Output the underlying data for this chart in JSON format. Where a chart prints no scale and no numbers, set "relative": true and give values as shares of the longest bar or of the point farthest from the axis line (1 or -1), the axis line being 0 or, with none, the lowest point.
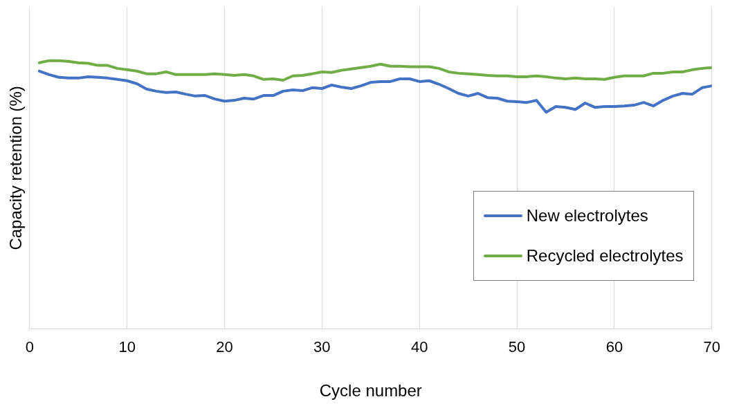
{
  "chart_data": {
    "type": "line",
    "relative": true,
    "xlabel": "Cycle number",
    "ylabel": "Capacity retention (%)",
    "x": [
      1,
      2,
      3,
      4,
      5,
      6,
      7,
      8,
      9,
      10,
      11,
      12,
      13,
      14,
      15,
      16,
      17,
      18,
      19,
      20,
      21,
      22,
      23,
      24,
      25,
      26,
      27,
      28,
      29,
      30,
      31,
      32,
      33,
      34,
      35,
      36,
      37,
      38,
      39,
      40,
      41,
      42,
      43,
      44,
      45,
      46,
      47,
      48,
      49,
      50,
      51,
      52,
      53,
      54,
      55,
      56,
      57,
      58,
      59,
      60,
      61,
      62,
      63,
      64,
      65,
      66,
      67,
      68,
      69,
      70
    ],
    "xlim": [
      0,
      70
    ],
    "xticks": [
      0,
      10,
      20,
      30,
      40,
      50,
      60,
      70
    ],
    "grid": "x",
    "legend": "bottom right",
    "marker": "none",
    "line_style": "solid",
    "series": [
      {
        "name": "New electrolytes",
        "color": "#4472c4",
        "values": [
          0.961,
          0.948,
          0.938,
          0.935,
          0.935,
          0.94,
          0.938,
          0.935,
          0.93,
          0.925,
          0.914,
          0.894,
          0.886,
          0.881,
          0.883,
          0.875,
          0.868,
          0.87,
          0.857,
          0.849,
          0.852,
          0.86,
          0.857,
          0.87,
          0.87,
          0.886,
          0.891,
          0.888,
          0.899,
          0.896,
          0.909,
          0.901,
          0.896,
          0.906,
          0.919,
          0.922,
          0.922,
          0.932,
          0.932,
          0.922,
          0.925,
          0.912,
          0.896,
          0.878,
          0.868,
          0.878,
          0.862,
          0.86,
          0.849,
          0.847,
          0.844,
          0.852,
          0.808,
          0.829,
          0.826,
          0.818,
          0.842,
          0.826,
          0.829,
          0.829,
          0.831,
          0.834,
          0.844,
          0.831,
          0.852,
          0.868,
          0.878,
          0.875,
          0.899,
          0.906
        ]
      },
      {
        "name": "Recycled electrolytes",
        "color": "#70ad47",
        "values": [
          0.992,
          1,
          1,
          0.997,
          0.992,
          0.99,
          0.982,
          0.982,
          0.971,
          0.966,
          0.961,
          0.951,
          0.951,
          0.958,
          0.948,
          0.948,
          0.948,
          0.948,
          0.951,
          0.948,
          0.945,
          0.948,
          0.943,
          0.93,
          0.932,
          0.927,
          0.943,
          0.945,
          0.951,
          0.958,
          0.956,
          0.964,
          0.969,
          0.974,
          0.979,
          0.987,
          0.979,
          0.979,
          0.977,
          0.977,
          0.977,
          0.971,
          0.958,
          0.953,
          0.951,
          0.948,
          0.945,
          0.943,
          0.943,
          0.94,
          0.94,
          0.943,
          0.94,
          0.935,
          0.932,
          0.935,
          0.932,
          0.932,
          0.93,
          0.938,
          0.943,
          0.943,
          0.943,
          0.953,
          0.953,
          0.958,
          0.958,
          0.966,
          0.971,
          0.974
        ]
      }
    ]
  }
}
